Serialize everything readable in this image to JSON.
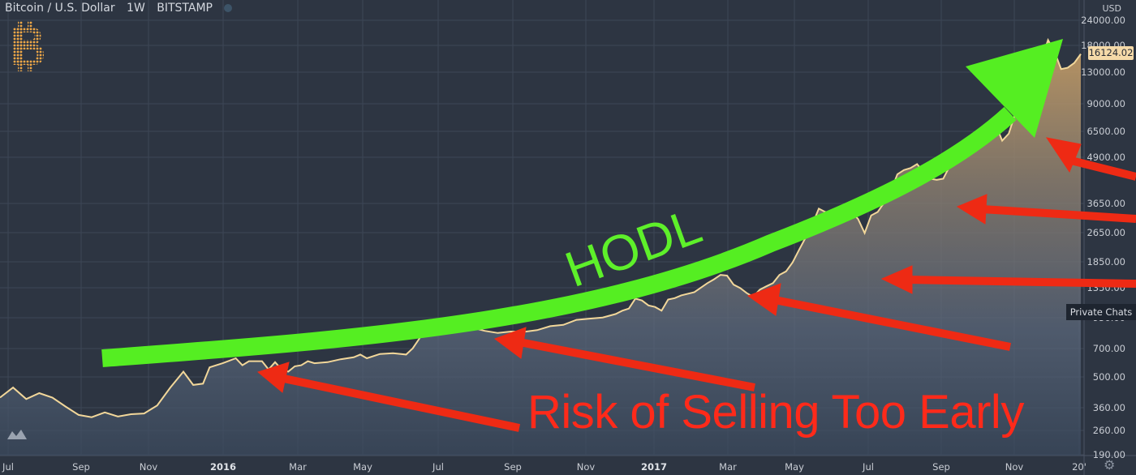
{
  "header": {
    "symbol": "Bitcoin / U.S. Dollar",
    "interval": "1W",
    "exchange": "BITSTAMP",
    "currency": "USD"
  },
  "price_label": "16124.02",
  "private_chats": "Private Chats",
  "annotations": {
    "hodl": "HODL",
    "risk": "Risk of Selling Too Early"
  },
  "colors": {
    "background": "#2d3542",
    "grid": "#3d4656",
    "price_line": "#f2d79a",
    "hodl_arrow": "#55ee22",
    "risk_arrows": "#ee2a14"
  },
  "icons": [
    "bitcoin-logo-icon",
    "tradingview-logo-icon",
    "settings-gear-icon"
  ],
  "chart_data": {
    "type": "area",
    "scale": "log",
    "ylim": [
      175,
      24000
    ],
    "y_ticks": [
      "24000.00",
      "18000.00",
      "13000.00",
      "9000.00",
      "6500.00",
      "4900.00",
      "3650.00",
      "2650.00",
      "1850.00",
      "1350.00",
      "950.00",
      "700.00",
      "500.00",
      "360.00",
      "260.00",
      "190.00"
    ],
    "x_ticks": [
      "Jul",
      "Sep",
      "Nov",
      "2016",
      "Mar",
      "May",
      "Jul",
      "Sep",
      "Nov",
      "2017",
      "Mar",
      "May",
      "Jul",
      "Sep",
      "Nov",
      "20'"
    ],
    "x_ticks_bold": [
      "2016",
      "2017"
    ],
    "grid": true,
    "series": [
      {
        "values": [
          [
            0,
            280
          ],
          [
            2,
            315
          ],
          [
            4,
            275
          ],
          [
            6,
            295
          ],
          [
            8,
            280
          ],
          [
            10,
            252
          ],
          [
            12,
            228
          ],
          [
            14,
            222
          ],
          [
            16,
            235
          ],
          [
            18,
            224
          ],
          [
            20,
            230
          ],
          [
            22,
            232
          ],
          [
            24,
            255
          ],
          [
            26,
            315
          ],
          [
            28,
            380
          ],
          [
            29.5,
            325
          ],
          [
            31,
            330
          ],
          [
            32,
            400
          ],
          [
            34,
            420
          ],
          [
            36,
            445
          ],
          [
            37,
            410
          ],
          [
            38,
            430
          ],
          [
            40,
            430
          ],
          [
            41,
            390
          ],
          [
            42,
            425
          ],
          [
            43,
            390
          ],
          [
            44,
            380
          ],
          [
            45,
            405
          ],
          [
            46,
            410
          ],
          [
            47,
            430
          ],
          [
            48,
            420
          ],
          [
            50,
            425
          ],
          [
            52,
            440
          ],
          [
            54,
            450
          ],
          [
            55,
            465
          ],
          [
            56,
            445
          ],
          [
            58,
            468
          ],
          [
            60,
            472
          ],
          [
            62,
            465
          ],
          [
            63,
            500
          ],
          [
            64,
            560
          ],
          [
            65,
            640
          ],
          [
            66,
            665
          ],
          [
            68,
            670
          ],
          [
            69,
            690
          ],
          [
            70,
            670
          ],
          [
            72,
            640
          ],
          [
            74,
            615
          ],
          [
            76,
            600
          ],
          [
            78,
            610
          ],
          [
            80,
            608
          ],
          [
            82,
            620
          ],
          [
            84,
            650
          ],
          [
            86,
            660
          ],
          [
            88,
            700
          ],
          [
            90,
            710
          ],
          [
            92,
            720
          ],
          [
            94,
            750
          ],
          [
            95,
            780
          ],
          [
            96,
            800
          ],
          [
            97,
            900
          ],
          [
            98,
            880
          ],
          [
            99,
            830
          ],
          [
            100,
            815
          ],
          [
            101,
            780
          ],
          [
            102,
            890
          ],
          [
            103,
            905
          ],
          [
            104,
            935
          ],
          [
            106,
            970
          ],
          [
            108,
            1080
          ],
          [
            109,
            1130
          ],
          [
            110,
            1190
          ],
          [
            111,
            1180
          ],
          [
            112,
            1060
          ],
          [
            113,
            1020
          ],
          [
            114,
            960
          ],
          [
            115,
            920
          ],
          [
            116,
            1000
          ],
          [
            117,
            1040
          ],
          [
            118,
            1080
          ],
          [
            119,
            1190
          ],
          [
            120,
            1240
          ],
          [
            121,
            1380
          ],
          [
            122,
            1600
          ],
          [
            123,
            1850
          ],
          [
            124,
            2150
          ],
          [
            125,
            2600
          ],
          [
            126,
            2500
          ],
          [
            128,
            2500
          ],
          [
            130,
            2500
          ],
          [
            131,
            2300
          ],
          [
            132,
            1950
          ],
          [
            133,
            2400
          ],
          [
            134,
            2500
          ],
          [
            135,
            2800
          ],
          [
            136,
            3200
          ],
          [
            137,
            3900
          ],
          [
            138,
            4100
          ],
          [
            139,
            4200
          ],
          [
            140,
            4400
          ],
          [
            141,
            4000
          ],
          [
            142,
            3700
          ],
          [
            143,
            3650
          ],
          [
            144,
            3700
          ],
          [
            145,
            4300
          ],
          [
            146,
            4800
          ],
          [
            147,
            4900
          ],
          [
            148,
            5500
          ],
          [
            149,
            5800
          ],
          [
            150,
            6000
          ],
          [
            151,
            6400
          ],
          [
            152,
            7000
          ],
          [
            153,
            5800
          ],
          [
            154,
            6300
          ],
          [
            155,
            8000
          ],
          [
            156,
            9700
          ],
          [
            157,
            11000
          ],
          [
            158,
            13000
          ],
          [
            159,
            15000
          ],
          [
            160,
            19000
          ],
          [
            161,
            16500
          ],
          [
            162,
            13500
          ],
          [
            163,
            13700
          ],
          [
            164,
            14500
          ],
          [
            165,
            16124
          ]
        ]
      }
    ]
  }
}
